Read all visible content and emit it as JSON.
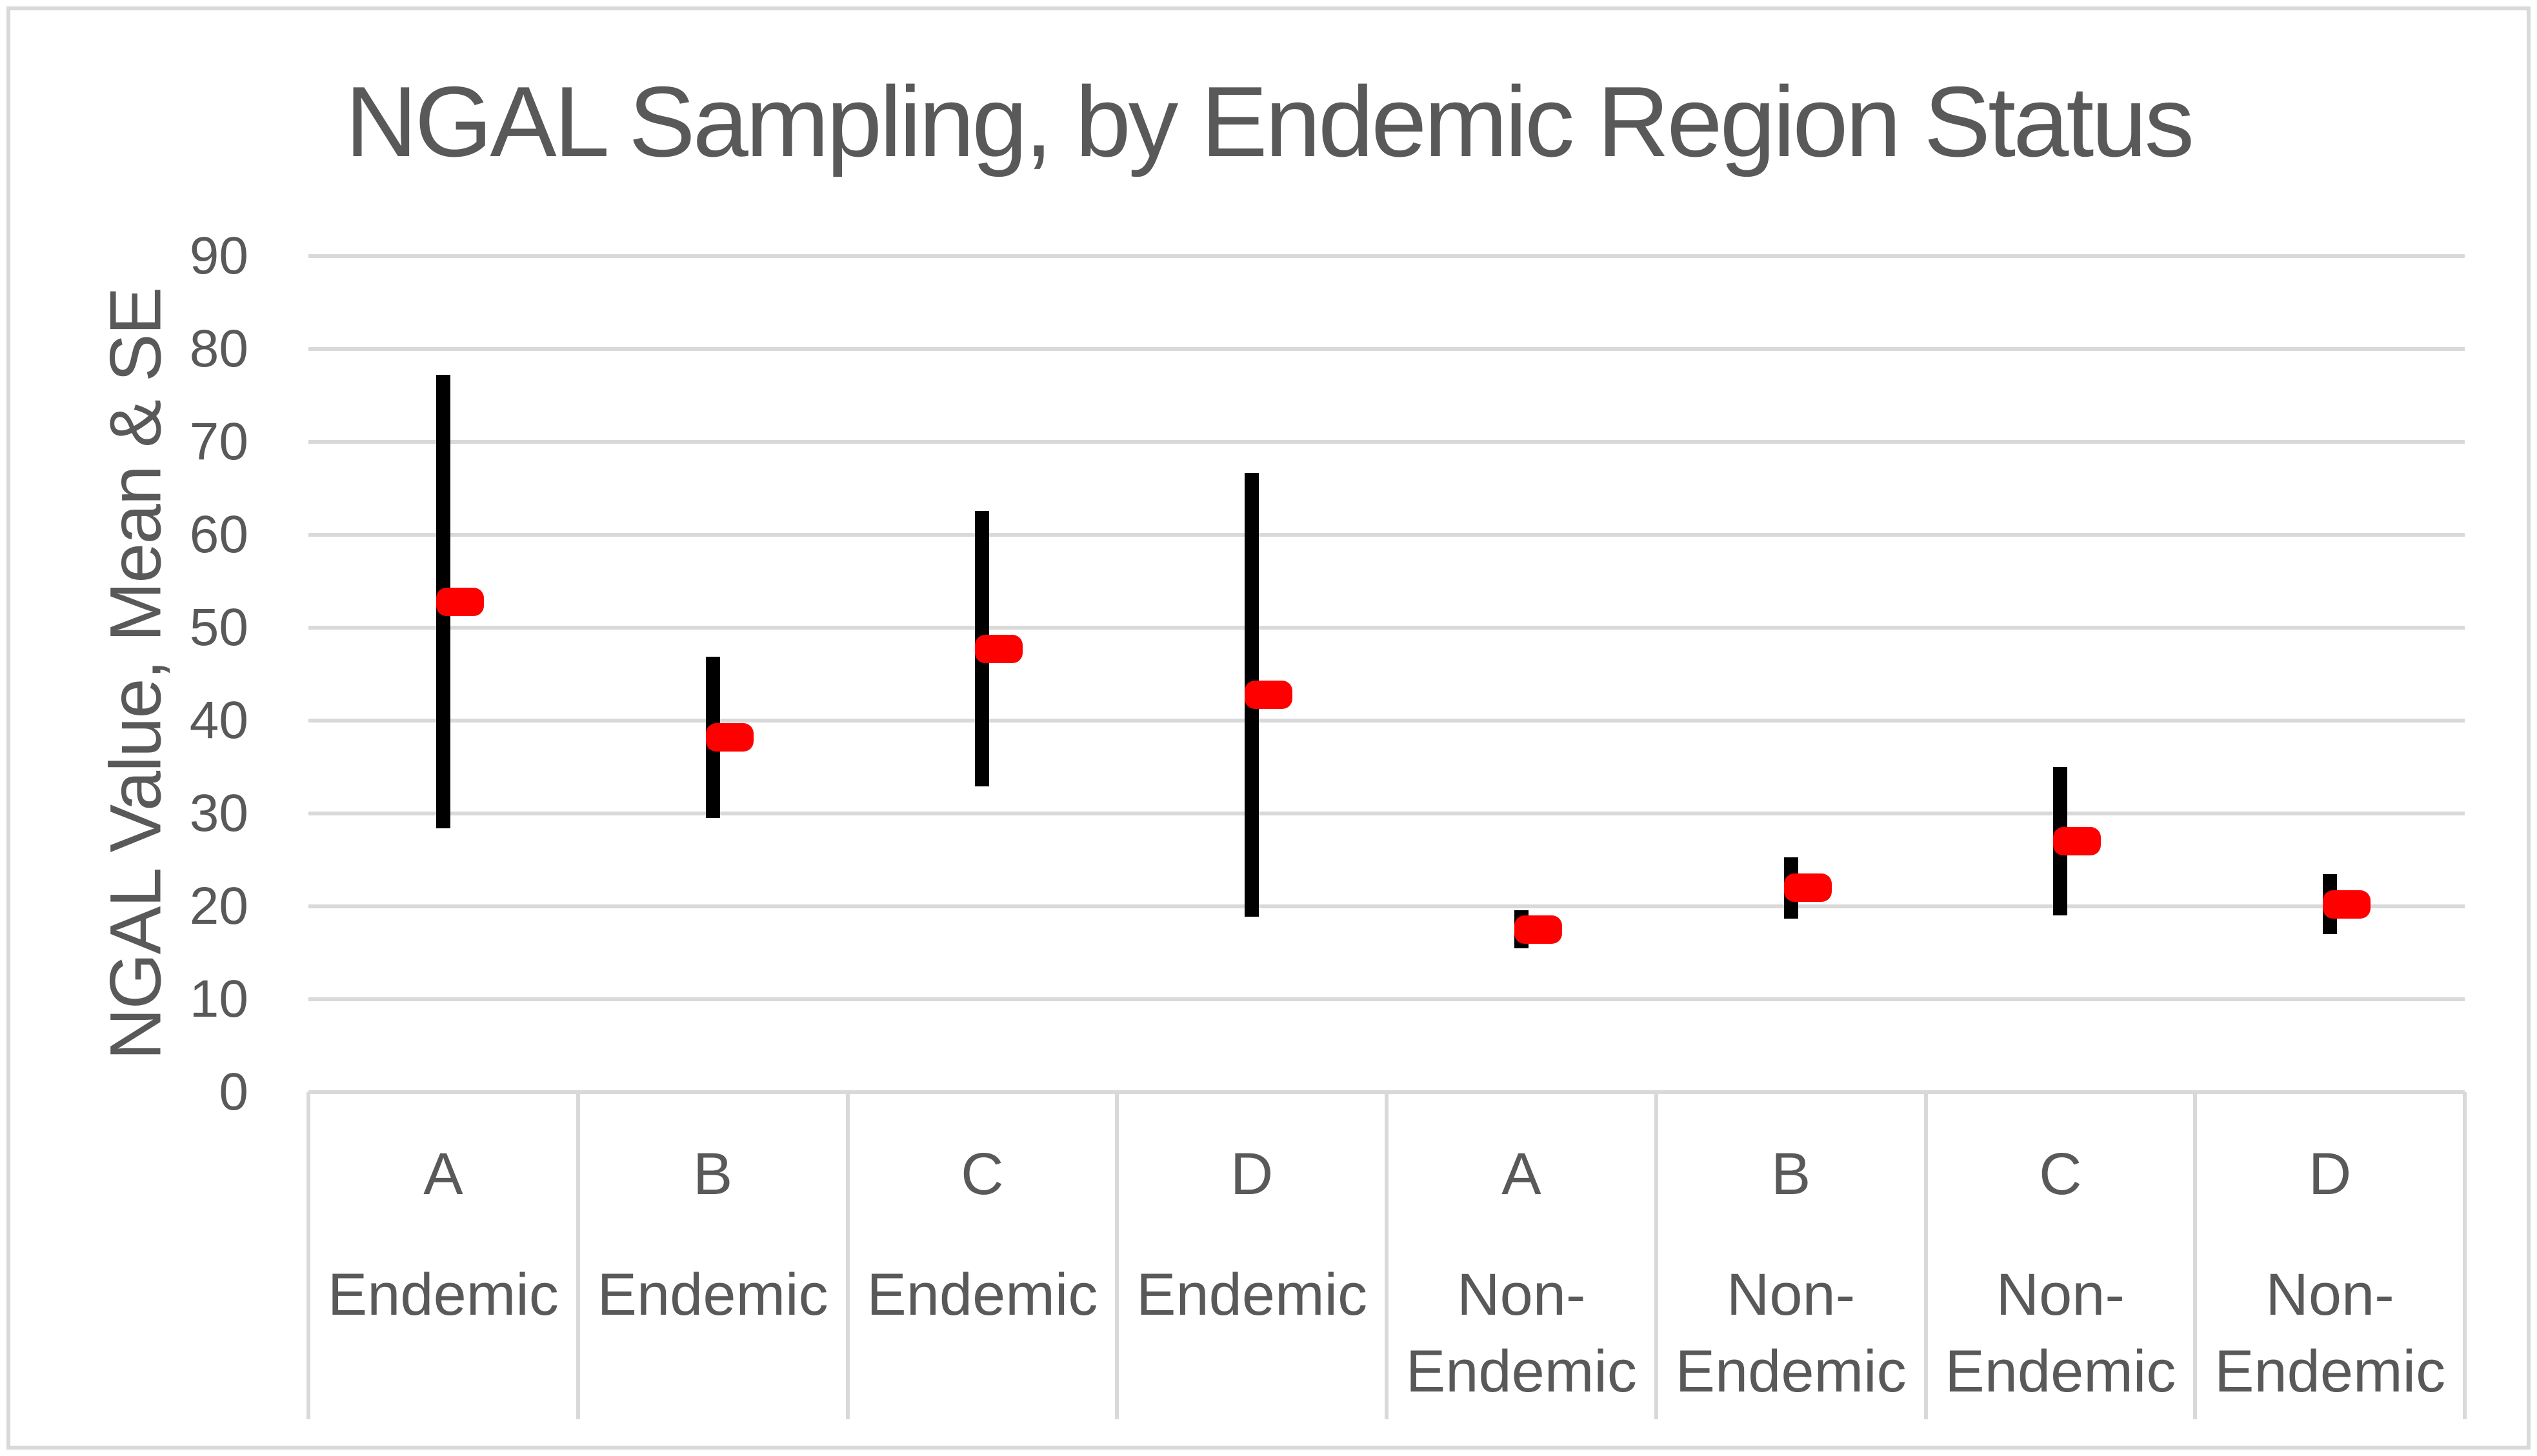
{
  "chart_data": {
    "type": "scatter",
    "title": "NGAL Sampling, by Endemic Region Status",
    "xlabel": "",
    "ylabel": "NGAL Value, Mean & SE",
    "ylim": [
      0,
      90
    ],
    "yticks": [
      0,
      10,
      20,
      30,
      40,
      50,
      60,
      70,
      80,
      90
    ],
    "grid": true,
    "legend_position": "none",
    "marker_style": "red rounded square = mean, black vertical line = mean ± SE",
    "points": [
      {
        "category": "A",
        "group": "Endemic",
        "group_lines": [
          "Endemic"
        ],
        "mean": 52.8,
        "upper": 77.2,
        "lower": 28.4
      },
      {
        "category": "B",
        "group": "Endemic",
        "group_lines": [
          "Endemic"
        ],
        "mean": 38.2,
        "upper": 46.9,
        "lower": 29.5
      },
      {
        "category": "C",
        "group": "Endemic",
        "group_lines": [
          "Endemic"
        ],
        "mean": 47.7,
        "upper": 62.6,
        "lower": 32.9
      },
      {
        "category": "D",
        "group": "Endemic",
        "group_lines": [
          "Endemic"
        ],
        "mean": 42.8,
        "upper": 66.7,
        "lower": 18.9
      },
      {
        "category": "A",
        "group": "Non-Endemic",
        "group_lines": [
          "Non-",
          "Endemic"
        ],
        "mean": 17.5,
        "upper": 19.6,
        "lower": 15.5
      },
      {
        "category": "B",
        "group": "Non-Endemic",
        "group_lines": [
          "Non-",
          "Endemic"
        ],
        "mean": 22.0,
        "upper": 25.3,
        "lower": 18.7
      },
      {
        "category": "C",
        "group": "Non-Endemic",
        "group_lines": [
          "Non-",
          "Endemic"
        ],
        "mean": 27.0,
        "upper": 35.0,
        "lower": 19.0
      },
      {
        "category": "D",
        "group": "Non-Endemic",
        "group_lines": [
          "Non-",
          "Endemic"
        ],
        "mean": 20.2,
        "upper": 23.5,
        "lower": 17.0
      }
    ]
  },
  "colors": {
    "mean_marker": "#FF0000",
    "error_bar": "#000000",
    "gridline": "#D9D9D9",
    "cell_border": "#D9D9D9",
    "frame_border": "#D9D9D9",
    "text": "#595959",
    "background": "#FFFFFF"
  }
}
